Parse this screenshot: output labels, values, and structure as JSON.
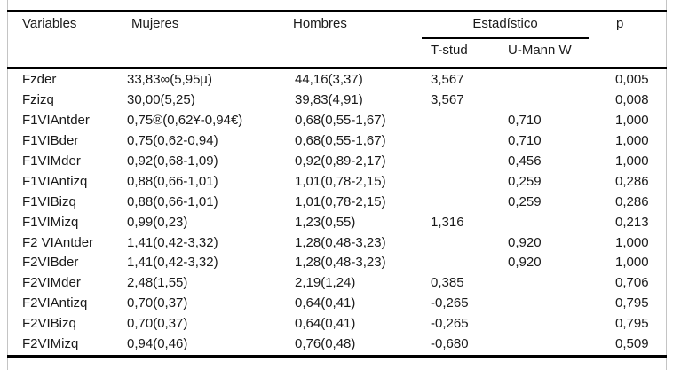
{
  "table": {
    "headers": {
      "variables": "Variables",
      "mujeres": "Mujeres",
      "hombres": "Hombres",
      "estadistico": "Estadístico",
      "t_stud": "T-stud",
      "u_mann": "U-Mann W",
      "p": "p"
    },
    "rows": [
      {
        "variable": "Fzder",
        "mujeres": "33,83∞(5,95µ)",
        "hombres": "44,16(3,37)",
        "t_stud": "3,567",
        "u_mann": "",
        "p": "0,005"
      },
      {
        "variable": "Fzizq",
        "mujeres": "30,00(5,25)",
        "hombres": "39,83(4,91)",
        "t_stud": "3,567",
        "u_mann": "",
        "p": "0,008"
      },
      {
        "variable": "F1VIAntder",
        "mujeres": "0,75®(0,62¥-0,94€)",
        "hombres": "0,68(0,55-1,67)",
        "t_stud": "",
        "u_mann": "0,710",
        "p": "1,000"
      },
      {
        "variable": "F1VIBder",
        "mujeres": "0,75(0,62-0,94)",
        "hombres": "0,68(0,55-1,67)",
        "t_stud": "",
        "u_mann": "0,710",
        "p": "1,000"
      },
      {
        "variable": "F1VIMder",
        "mujeres": "0,92(0,68-1,09)",
        "hombres": "0,92(0,89-2,17)",
        "t_stud": "",
        "u_mann": "0,456",
        "p": "1,000"
      },
      {
        "variable": "F1VIAntizq",
        "mujeres": "0,88(0,66-1,01)",
        "hombres": "1,01(0,78-2,15)",
        "t_stud": "",
        "u_mann": "0,259",
        "p": "0,286"
      },
      {
        "variable": "F1VIBizq",
        "mujeres": "0,88(0,66-1,01)",
        "hombres": "1,01(0,78-2,15)",
        "t_stud": "",
        "u_mann": "0,259",
        "p": "0,286"
      },
      {
        "variable": "F1VIMizq",
        "mujeres": "0,99(0,23)",
        "hombres": "1,23(0,55)",
        "t_stud": "1,316",
        "u_mann": "",
        "p": "0,213"
      },
      {
        "variable": "F2 VIAntder",
        "mujeres": "1,41(0,42-3,32)",
        "hombres": "1,28(0,48-3,23)",
        "t_stud": "",
        "u_mann": "0,920",
        "p": "1,000"
      },
      {
        "variable": "F2VIBder",
        "mujeres": "1,41(0,42-3,32)",
        "hombres": "1,28(0,48-3,23)",
        "t_stud": "",
        "u_mann": "0,920",
        "p": "1,000"
      },
      {
        "variable": "F2VIMder",
        "mujeres": "2,48(1,55)",
        "hombres": "2,19(1,24)",
        "t_stud": "0,385",
        "u_mann": "",
        "p": "0,706"
      },
      {
        "variable": "F2VIAntizq",
        "mujeres": "0,70(0,37)",
        "hombres": "0,64(0,41)",
        "t_stud": "-0,265",
        "u_mann": "",
        "p": "0,795"
      },
      {
        "variable": "F2VIBizq",
        "mujeres": "0,70(0,37)",
        "hombres": "0,64(0,41)",
        "t_stud": "-0,265",
        "u_mann": "",
        "p": "0,795"
      },
      {
        "variable": "F2VIMizq",
        "mujeres": "0,94(0,46)",
        "hombres": "0,76(0,48)",
        "t_stud": "-0,680",
        "u_mann": "",
        "p": "0,509"
      }
    ],
    "colors": {
      "rule": "#000000",
      "side_border": "#c4c4c4",
      "text": "#1a1a1a",
      "background": "#ffffff"
    }
  }
}
